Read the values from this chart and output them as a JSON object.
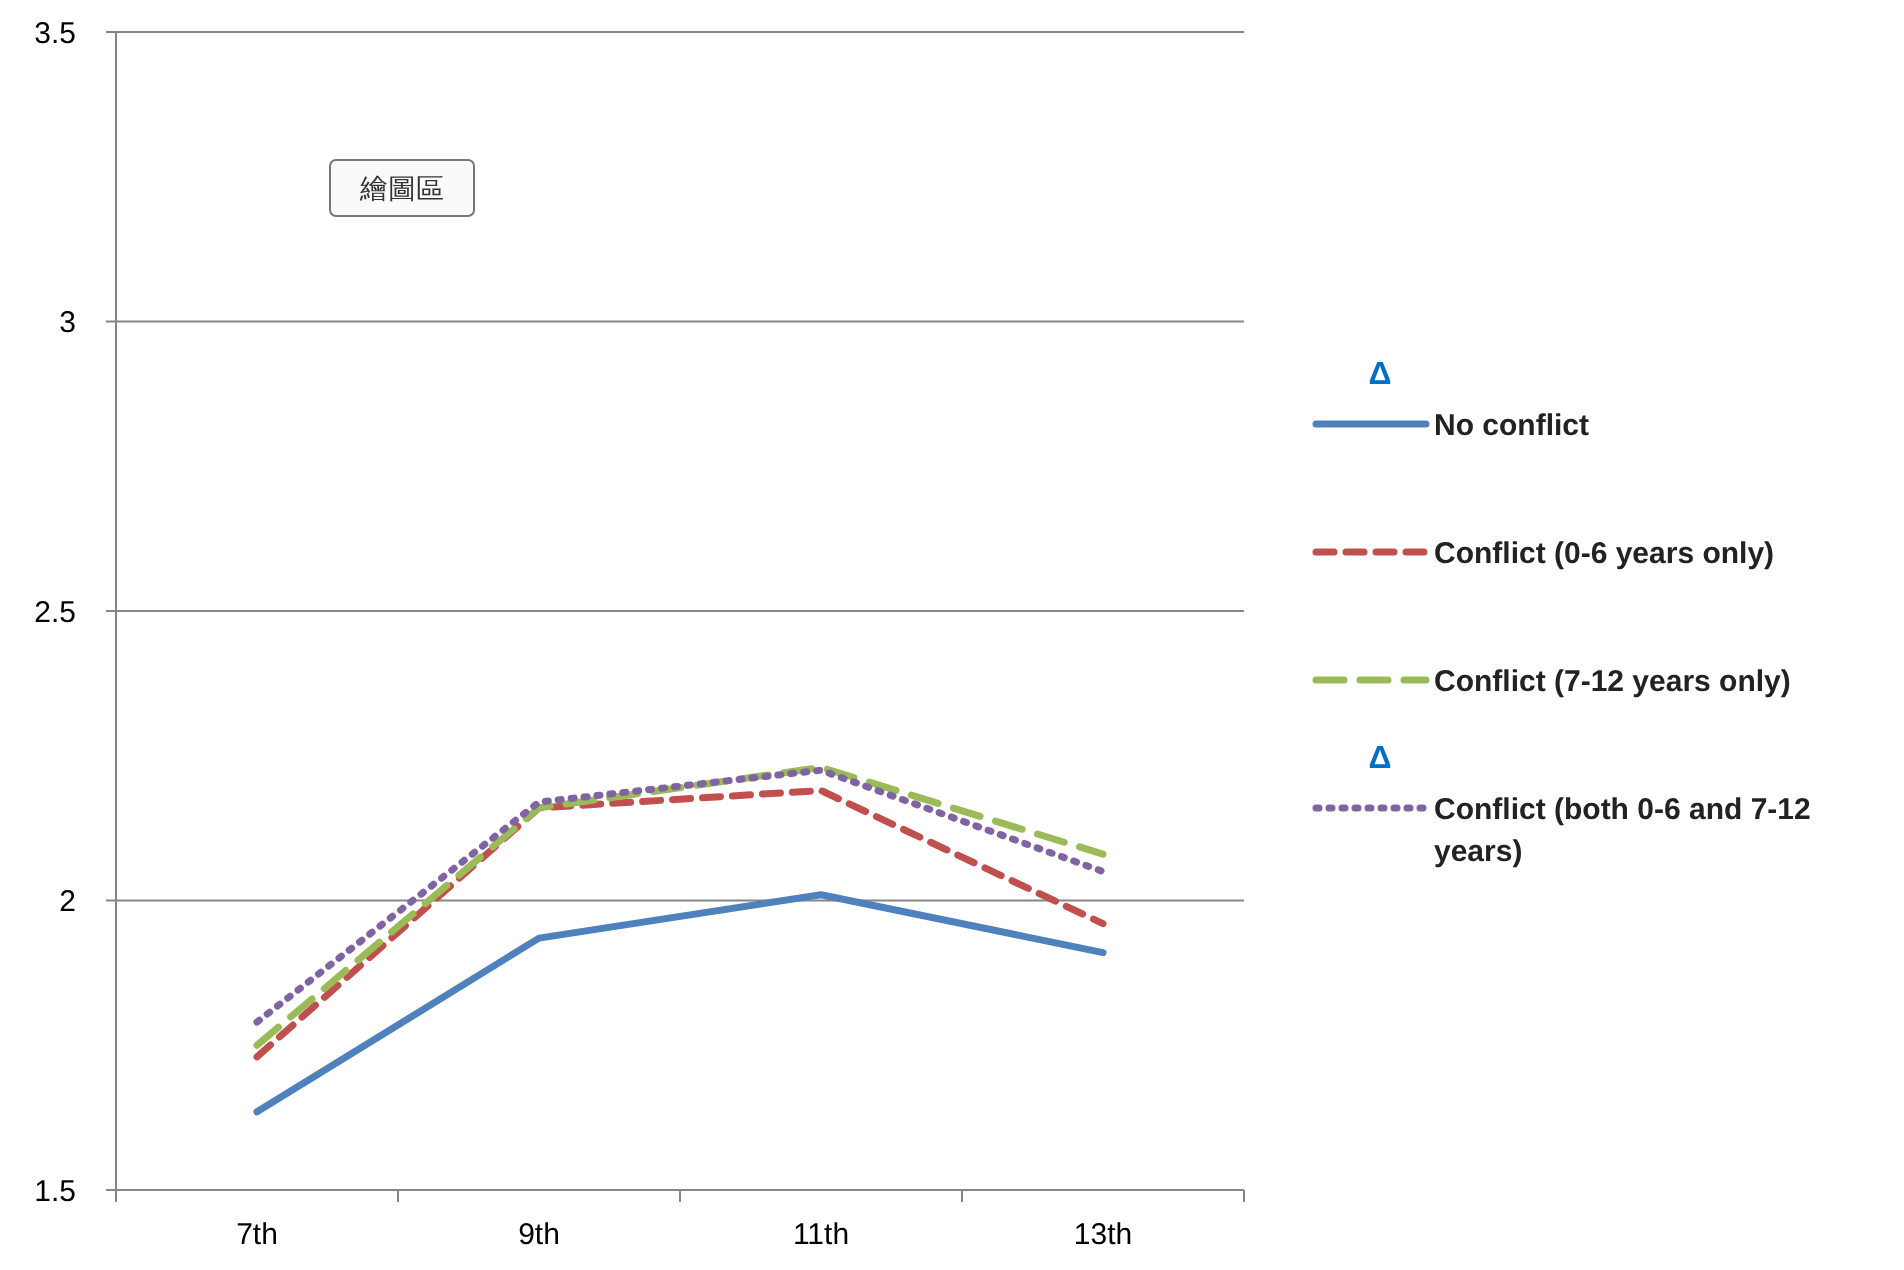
{
  "chart_data": {
    "type": "line",
    "categories": [
      "7th",
      "9th",
      "11th",
      "13th"
    ],
    "series": [
      {
        "name": "No conflict",
        "color": "#4f81bd",
        "line_style": "solid",
        "values": [
          1.635,
          1.935,
          2.01,
          1.91
        ]
      },
      {
        "name": "Conflict (0-6 years only)",
        "color": "#c0504d",
        "line_style": "dashed",
        "values": [
          1.73,
          2.16,
          2.19,
          1.96
        ]
      },
      {
        "name": "Conflict (7-12 years only)",
        "color": "#9bbb59",
        "line_style": "dashed",
        "values": [
          1.75,
          2.16,
          2.23,
          2.08
        ]
      },
      {
        "name": "Conflict (both 0-6 and 7-12 years)",
        "color": "#8064a2",
        "line_style": "dotted",
        "values": [
          1.79,
          2.17,
          2.225,
          2.05
        ]
      }
    ],
    "ylim": [
      1.5,
      3.5
    ],
    "yticks": [
      {
        "value": 1.5,
        "label": "1.5"
      },
      {
        "value": 2,
        "label": "2"
      },
      {
        "value": 2.5,
        "label": "2.5"
      },
      {
        "value": 3,
        "label": "3"
      },
      {
        "value": 3.5,
        "label": "3.5"
      }
    ],
    "grid": "y",
    "legend": "right",
    "annotations": [
      "繪圖區",
      "Δ",
      "Δ"
    ]
  }
}
